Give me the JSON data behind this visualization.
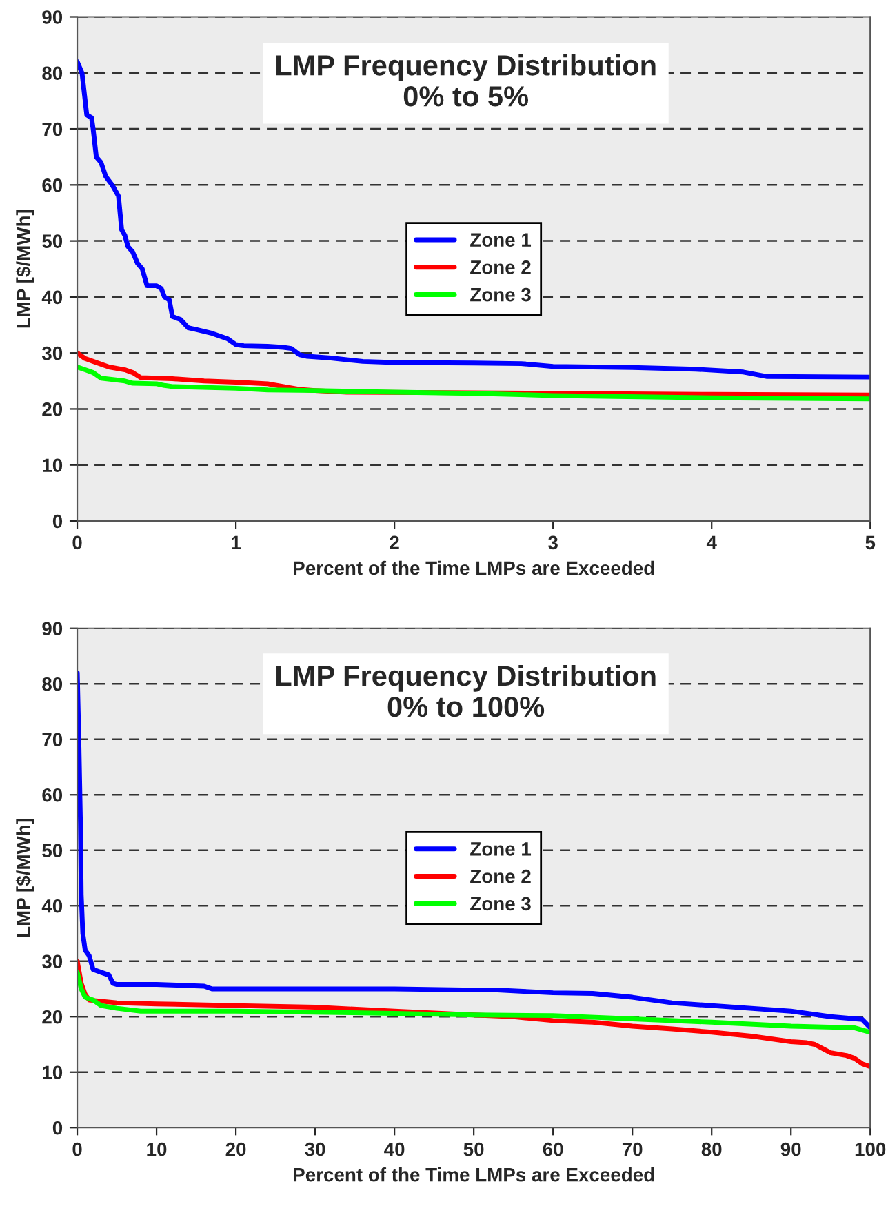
{
  "chart_data": [
    {
      "type": "line",
      "title": "LMP Frequency Distribution\n0% to 5%",
      "xlabel": "Percent of the Time LMPs are Exceeded",
      "ylabel": "LMP [$/MWh]",
      "xlim": [
        0,
        5
      ],
      "xticks": [
        0,
        1,
        2,
        3,
        4,
        5
      ],
      "ylim": [
        0,
        90
      ],
      "yticks": [
        0,
        10,
        20,
        30,
        40,
        50,
        60,
        70,
        80,
        90
      ],
      "grid": "y",
      "legend": "center",
      "marker": "none",
      "line_style": "solid",
      "series": [
        {
          "name": "Zone 1",
          "color": "#0000ff",
          "x": [
            0,
            0.03,
            0.06,
            0.09,
            0.1,
            0.12,
            0.15,
            0.18,
            0.22,
            0.26,
            0.28,
            0.3,
            0.32,
            0.35,
            0.38,
            0.41,
            0.44,
            0.5,
            0.53,
            0.55,
            0.58,
            0.6,
            0.65,
            0.7,
            0.75,
            0.85,
            0.95,
            1.0,
            1.05,
            1.2,
            1.3,
            1.35,
            1.4,
            1.45,
            1.6,
            1.8,
            2.0,
            2.5,
            2.8,
            3.0,
            3.5,
            3.9,
            4.2,
            4.35,
            5
          ],
          "values": [
            82,
            80,
            72.5,
            72,
            70,
            65,
            64,
            61.5,
            60,
            58,
            52,
            51,
            49,
            48,
            46,
            45,
            42,
            42,
            41.5,
            40,
            39.5,
            36.5,
            36,
            34.5,
            34.2,
            33.5,
            32.5,
            31.5,
            31.3,
            31.2,
            31,
            30.8,
            29.7,
            29.4,
            29.1,
            28.5,
            28.3,
            28.2,
            28.1,
            27.6,
            27.4,
            27.1,
            26.6,
            25.8,
            25.7
          ]
        },
        {
          "name": "Zone 2",
          "color": "#ff0000",
          "x": [
            0,
            0.05,
            0.1,
            0.2,
            0.3,
            0.35,
            0.4,
            0.6,
            0.8,
            1.0,
            1.2,
            1.3,
            1.4,
            1.5,
            1.7,
            2.5,
            3,
            4,
            5
          ],
          "values": [
            30,
            29,
            28.5,
            27.5,
            27,
            26.5,
            25.6,
            25.4,
            25,
            24.8,
            24.5,
            24,
            23.5,
            23.3,
            23,
            22.9,
            22.8,
            22.6,
            22.5
          ]
        },
        {
          "name": "Zone 3",
          "color": "#00ff00",
          "x": [
            0,
            0.05,
            0.1,
            0.15,
            0.3,
            0.35,
            0.5,
            0.55,
            0.6,
            1.0,
            1.2,
            1.5,
            2,
            2.5,
            3,
            4,
            5
          ],
          "values": [
            27.5,
            27,
            26.5,
            25.5,
            25,
            24.6,
            24.5,
            24.2,
            24,
            23.7,
            23.4,
            23.3,
            23,
            22.8,
            22.4,
            22,
            21.8
          ]
        }
      ]
    },
    {
      "type": "line",
      "title": "LMP Frequency Distribution\n0% to 100%",
      "xlabel": "Percent of the Time LMPs are Exceeded",
      "ylabel": "LMP [$/MWh]",
      "xlim": [
        0,
        100
      ],
      "xticks": [
        0,
        10,
        20,
        30,
        40,
        50,
        60,
        70,
        80,
        90,
        100
      ],
      "ylim": [
        0,
        90
      ],
      "yticks": [
        0,
        10,
        20,
        30,
        40,
        50,
        60,
        70,
        80,
        90
      ],
      "grid": "y",
      "legend": "center",
      "marker": "none",
      "line_style": "solid",
      "series": [
        {
          "name": "Zone 1",
          "color": "#0000ff",
          "x": [
            0,
            0.2,
            0.4,
            0.5,
            0.7,
            1,
            1.5,
            2,
            3,
            4,
            4.5,
            5,
            10,
            16,
            17,
            20,
            40,
            50,
            53,
            60,
            65,
            70,
            75,
            80,
            90,
            95,
            99,
            100
          ],
          "values": [
            82,
            70,
            55,
            42,
            35,
            32,
            31,
            28.5,
            28,
            27.5,
            26,
            25.8,
            25.8,
            25.5,
            25,
            25,
            25,
            24.8,
            24.8,
            24.3,
            24.2,
            23.5,
            22.5,
            22,
            21,
            20,
            19.5,
            18
          ]
        },
        {
          "name": "Zone 2",
          "color": "#ff0000",
          "x": [
            0,
            0.5,
            1,
            1.5,
            5,
            10,
            20,
            30,
            40,
            50,
            55,
            60,
            65,
            70,
            75,
            80,
            85,
            90,
            92,
            93,
            95,
            97,
            98,
            99,
            100
          ],
          "values": [
            30,
            26,
            24,
            23,
            22.5,
            22.3,
            22,
            21.7,
            21,
            20.3,
            20,
            19.3,
            19,
            18.3,
            17.8,
            17.2,
            16.5,
            15.5,
            15.3,
            15,
            13.5,
            13,
            12.5,
            11.5,
            11
          ]
        },
        {
          "name": "Zone 3",
          "color": "#00ff00",
          "x": [
            0,
            0.5,
            1,
            2,
            3,
            5,
            8,
            20,
            40,
            50,
            60,
            70,
            80,
            90,
            98,
            100
          ],
          "values": [
            28,
            25,
            23.5,
            23,
            22,
            21.5,
            21,
            21,
            20.6,
            20.3,
            20.2,
            19.6,
            19,
            18.3,
            18,
            17.2
          ]
        }
      ]
    }
  ]
}
